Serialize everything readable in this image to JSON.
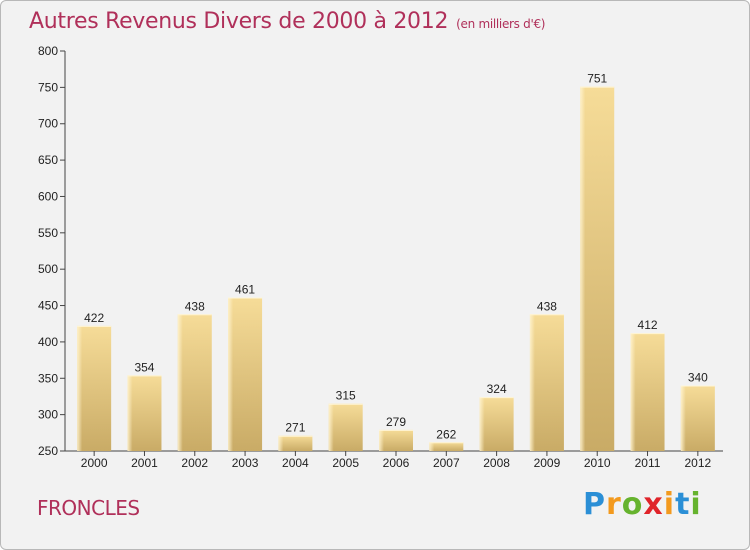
{
  "title": {
    "main": "Autres Revenus Divers de 2000 à 2012",
    "unit": "(en milliers d'€)"
  },
  "city": "FRONCLES",
  "logo": {
    "letters": [
      "P",
      "r",
      "o",
      "x",
      "i",
      "t",
      "i"
    ],
    "colors": [
      "#2b8fd6",
      "#f39a1e",
      "#66b32e",
      "#e0242a",
      "#f39a1e",
      "#2b8fd6",
      "#66b32e"
    ]
  },
  "chart_data": {
    "type": "bar",
    "categories": [
      "2000",
      "2001",
      "2002",
      "2003",
      "2004",
      "2005",
      "2006",
      "2007",
      "2008",
      "2009",
      "2010",
      "2011",
      "2012"
    ],
    "values": [
      422,
      354,
      438,
      461,
      271,
      315,
      279,
      262,
      324,
      438,
      751,
      412,
      340
    ],
    "ylim": [
      250,
      800
    ],
    "yticks": [
      250,
      300,
      350,
      400,
      450,
      500,
      550,
      600,
      650,
      700,
      750,
      800
    ],
    "grid": false,
    "bar_color": "#e3c57e"
  }
}
